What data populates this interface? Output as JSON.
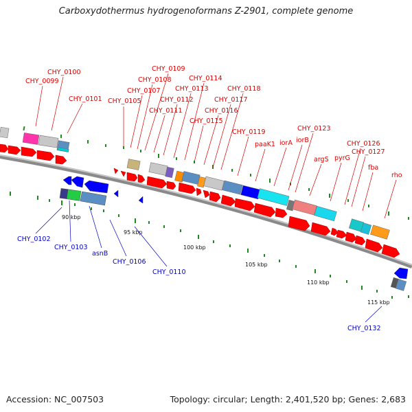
{
  "title": "Carboxydothermus hydrogenoformans Z-2901, complete genome",
  "accession": "Accession: NC_007503",
  "summary": "Topology: circular; Length: 2,401,520 bp; Genes: 2,683",
  "colors": {
    "forward_label": "#dd0000",
    "reverse_label": "#0000cc",
    "gene_forward": "#ff0000",
    "gene_reverse": "#0000ff",
    "tick": "#228822"
  },
  "scale_labels": [
    "90 kbp",
    "95 kbp",
    "100 kbp",
    "105 kbp",
    "110 kbp",
    "115 kbp"
  ],
  "forward_labels": [
    "CHY_0099",
    "CHY_0100",
    "CHY_0101",
    "CHY_0105",
    "CHY_0107",
    "CHY_0108",
    "CHY_0109",
    "CHY_0111",
    "CHY_0112",
    "CHY_0113",
    "CHY_0114",
    "CHY_0115",
    "CHY_0116",
    "CHY_0117",
    "CHY_0118",
    "CHY_0119",
    "paaK1",
    "iorA",
    "iorB",
    "CHY_0123",
    "argS",
    "pyrG",
    "CHY_0126",
    "CHY_0127",
    "fba",
    "rho"
  ],
  "reverse_labels": [
    "CHY_0102",
    "CHY_0103",
    "asnB",
    "CHY_0106",
    "CHY_0110",
    "CHY_0132"
  ]
}
